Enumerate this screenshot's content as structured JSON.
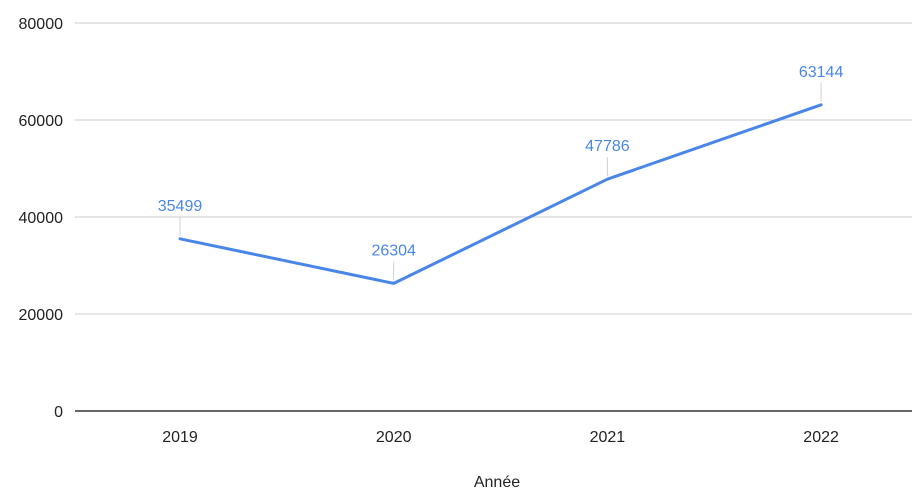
{
  "chart_data": {
    "type": "line",
    "title": "",
    "xlabel": "Année",
    "ylabel": "",
    "categories": [
      "2019",
      "2020",
      "2021",
      "2022"
    ],
    "series": [
      {
        "values": [
          35499,
          26304,
          47786,
          63144
        ],
        "color": "#4a86e8"
      }
    ],
    "ylim": [
      0,
      80000
    ],
    "yticks": [
      0,
      20000,
      40000,
      60000,
      80000
    ],
    "ytick_labels": [
      "0",
      "20000",
      "40000",
      "60000",
      "80000"
    ],
    "grid": true,
    "legend": "none"
  }
}
